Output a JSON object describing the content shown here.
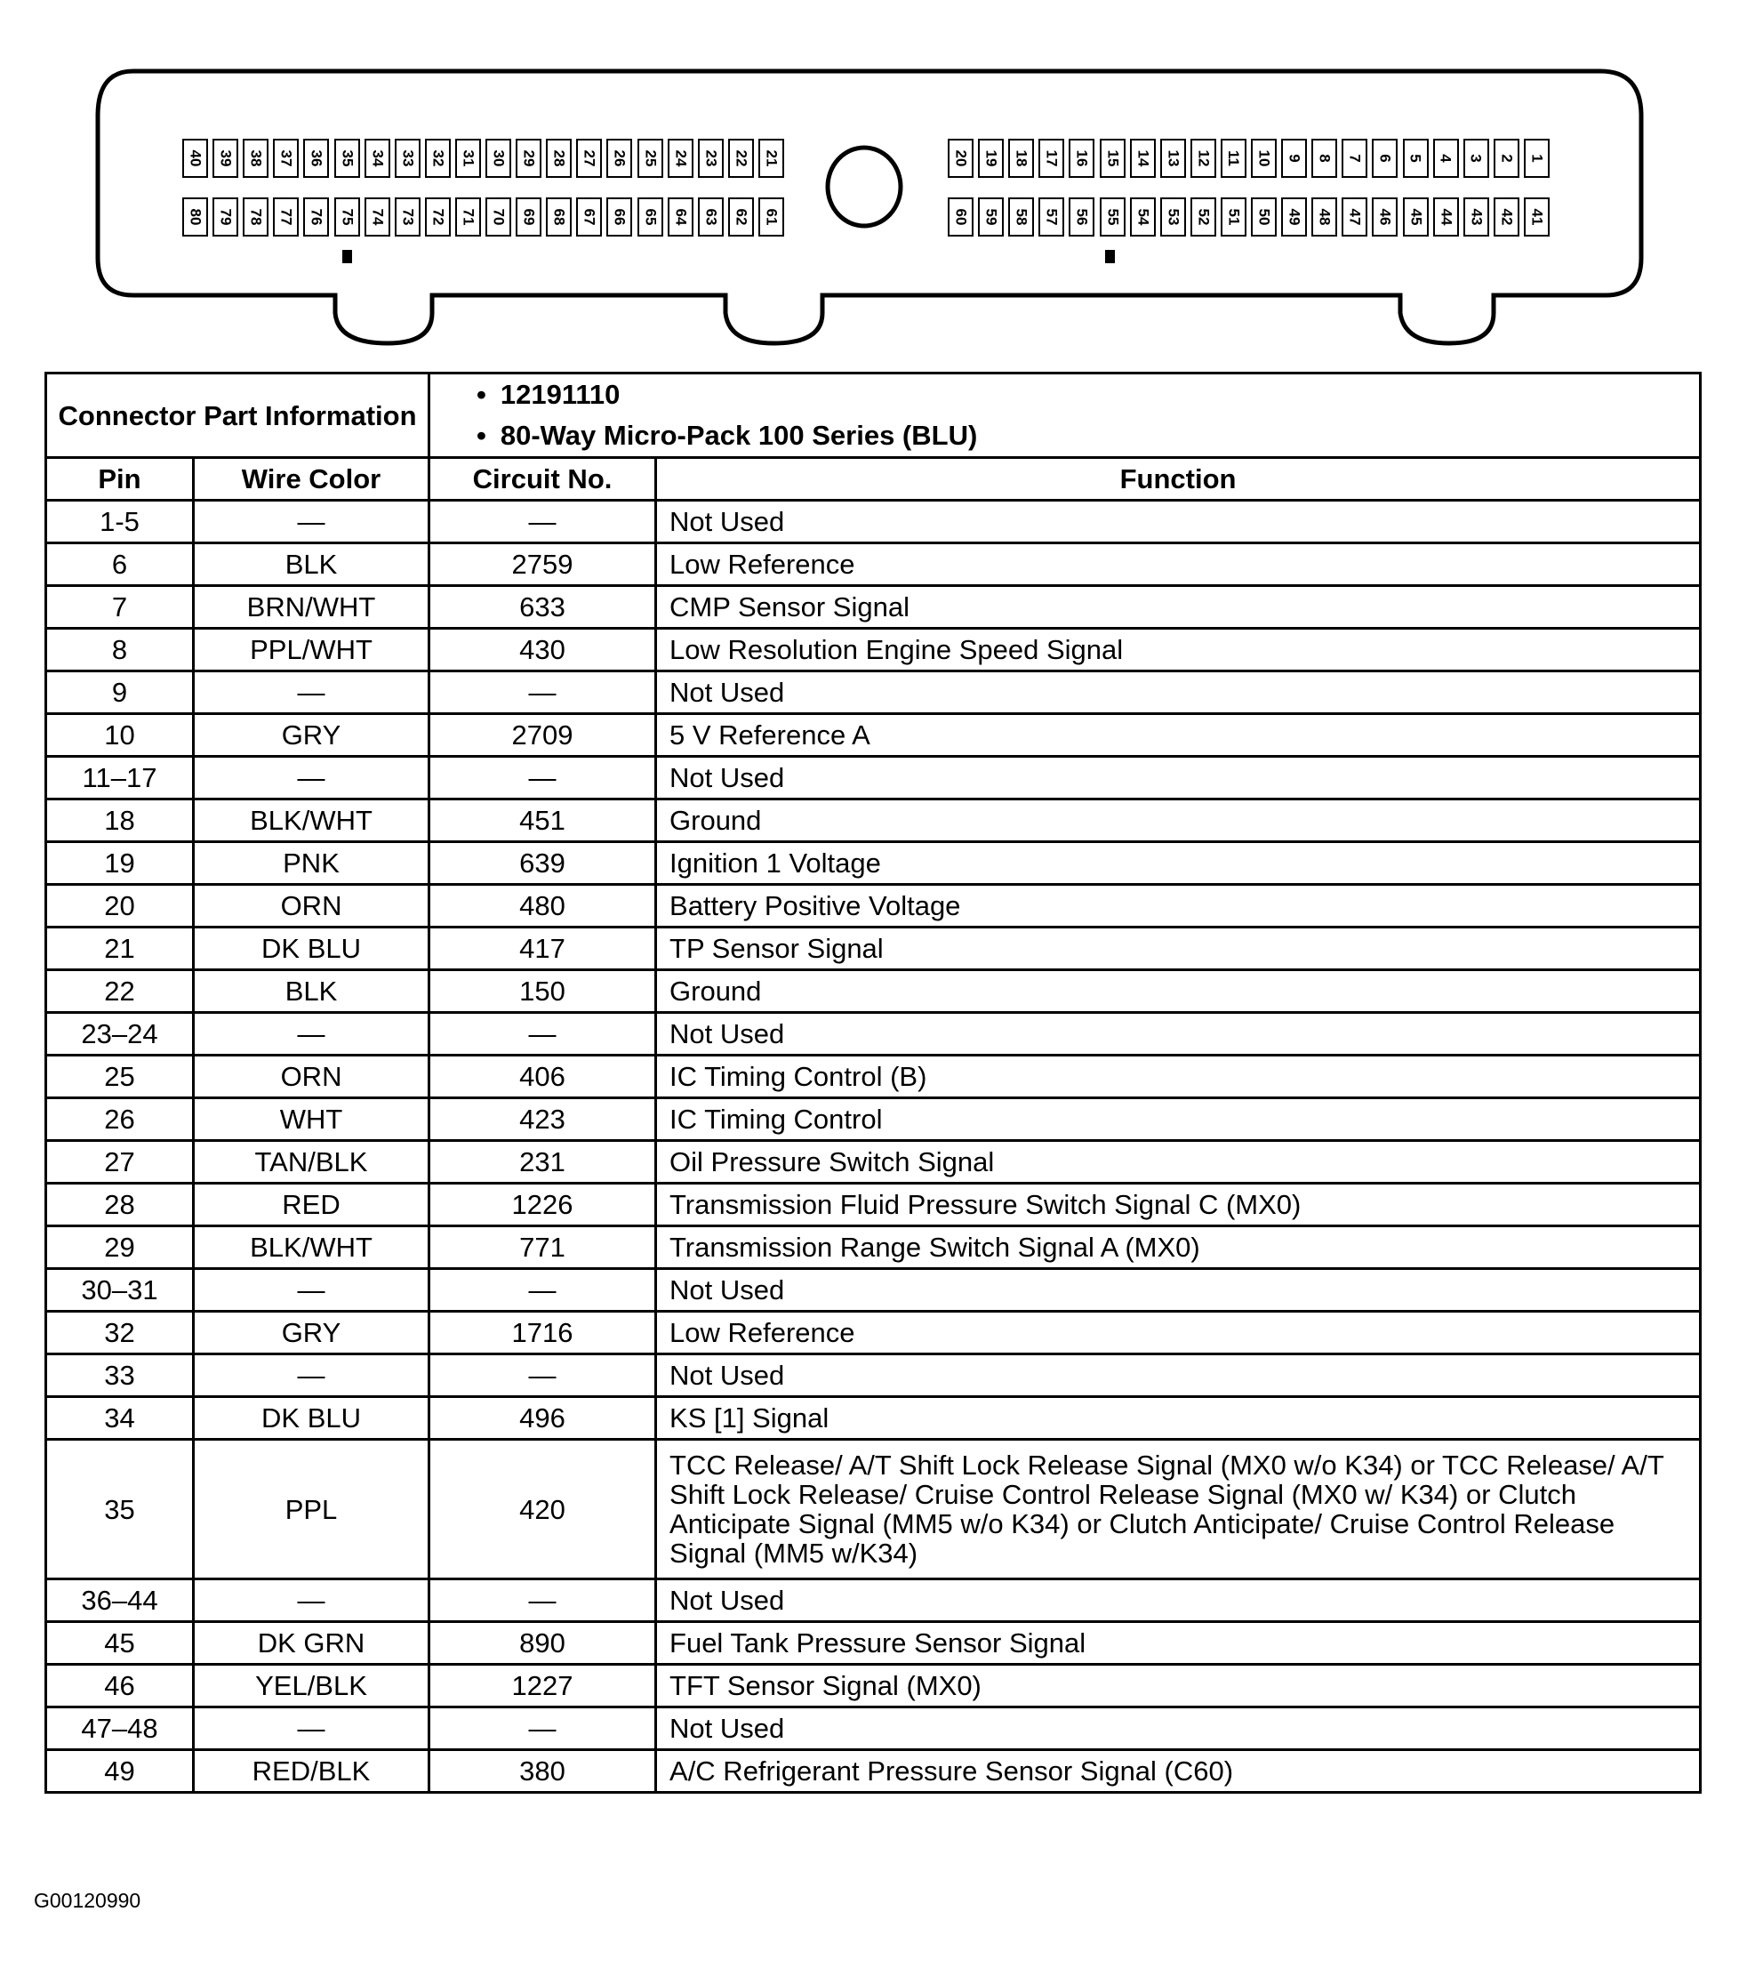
{
  "connector": {
    "top_left_pins": [
      "40",
      "39",
      "38",
      "37",
      "36",
      "35",
      "34",
      "33",
      "32",
      "31",
      "30",
      "29",
      "28",
      "27",
      "26",
      "25",
      "24",
      "23",
      "22",
      "21"
    ],
    "bottom_left_pins": [
      "80",
      "79",
      "78",
      "77",
      "76",
      "75",
      "74",
      "73",
      "72",
      "71",
      "70",
      "69",
      "68",
      "67",
      "66",
      "65",
      "64",
      "63",
      "62",
      "61"
    ],
    "top_right_pins": [
      "20",
      "19",
      "18",
      "17",
      "16",
      "15",
      "14",
      "13",
      "12",
      "11",
      "10",
      "9",
      "8",
      "7",
      "6",
      "5",
      "4",
      "3",
      "2",
      "1"
    ],
    "bottom_right_pins": [
      "60",
      "59",
      "58",
      "57",
      "56",
      "55",
      "54",
      "53",
      "52",
      "51",
      "50",
      "49",
      "48",
      "47",
      "46",
      "45",
      "44",
      "43",
      "42",
      "41"
    ]
  },
  "table": {
    "info_label": "Connector Part Information",
    "info_items": [
      "12191110",
      "80-Way Micro-Pack 100 Series (BLU)"
    ],
    "headers": {
      "pin": "Pin",
      "wire": "Wire Color",
      "circuit": "Circuit No.",
      "function": "Function"
    },
    "rows": [
      {
        "pin": "1-5",
        "wire": "—",
        "circuit": "—",
        "function": "Not Used"
      },
      {
        "pin": "6",
        "wire": "BLK",
        "circuit": "2759",
        "function": "Low Reference"
      },
      {
        "pin": "7",
        "wire": "BRN/WHT",
        "circuit": "633",
        "function": "CMP Sensor Signal"
      },
      {
        "pin": "8",
        "wire": "PPL/WHT",
        "circuit": "430",
        "function": "Low Resolution Engine Speed Signal"
      },
      {
        "pin": "9",
        "wire": "—",
        "circuit": "—",
        "function": "Not Used"
      },
      {
        "pin": "10",
        "wire": "GRY",
        "circuit": "2709",
        "function": "5 V Reference A"
      },
      {
        "pin": "11–17",
        "wire": "—",
        "circuit": "—",
        "function": "Not Used"
      },
      {
        "pin": "18",
        "wire": "BLK/WHT",
        "circuit": "451",
        "function": "Ground"
      },
      {
        "pin": "19",
        "wire": "PNK",
        "circuit": "639",
        "function": "Ignition 1 Voltage"
      },
      {
        "pin": "20",
        "wire": "ORN",
        "circuit": "480",
        "function": "Battery Positive Voltage"
      },
      {
        "pin": "21",
        "wire": "DK BLU",
        "circuit": "417",
        "function": "TP Sensor Signal"
      },
      {
        "pin": "22",
        "wire": "BLK",
        "circuit": "150",
        "function": "Ground"
      },
      {
        "pin": "23–24",
        "wire": "—",
        "circuit": "—",
        "function": "Not Used"
      },
      {
        "pin": "25",
        "wire": "ORN",
        "circuit": "406",
        "function": "IC Timing Control (B)"
      },
      {
        "pin": "26",
        "wire": "WHT",
        "circuit": "423",
        "function": "IC Timing Control"
      },
      {
        "pin": "27",
        "wire": "TAN/BLK",
        "circuit": "231",
        "function": "Oil Pressure Switch Signal"
      },
      {
        "pin": "28",
        "wire": "RED",
        "circuit": "1226",
        "function": "Transmission Fluid Pressure Switch Signal C (MX0)"
      },
      {
        "pin": "29",
        "wire": "BLK/WHT",
        "circuit": "771",
        "function": "Transmission Range Switch Signal A (MX0)"
      },
      {
        "pin": "30–31",
        "wire": "—",
        "circuit": "—",
        "function": "Not Used"
      },
      {
        "pin": "32",
        "wire": "GRY",
        "circuit": "1716",
        "function": "Low Reference"
      },
      {
        "pin": "33",
        "wire": "—",
        "circuit": "—",
        "function": "Not Used"
      },
      {
        "pin": "34",
        "wire": "DK BLU",
        "circuit": "496",
        "function": "KS [1] Signal"
      },
      {
        "pin": "35",
        "wire": "PPL",
        "circuit": "420",
        "function": "TCC Release/ A/T Shift Lock Release Signal (MX0 w/o K34) or TCC Release/ A/T Shift Lock Release/ Cruise Control Release Signal (MX0 w/ K34) or Clutch Anticipate Signal (MM5 w/o K34) or Clutch Anticipate/ Cruise Control Release Signal (MM5 w/K34)"
      },
      {
        "pin": "36–44",
        "wire": "—",
        "circuit": "—",
        "function": "Not Used"
      },
      {
        "pin": "45",
        "wire": "DK GRN",
        "circuit": "890",
        "function": "Fuel Tank Pressure Sensor Signal"
      },
      {
        "pin": "46",
        "wire": "YEL/BLK",
        "circuit": "1227",
        "function": "TFT Sensor Signal (MX0)"
      },
      {
        "pin": "47–48",
        "wire": "—",
        "circuit": "—",
        "function": "Not Used"
      },
      {
        "pin": "49",
        "wire": "RED/BLK",
        "circuit": "380",
        "function": "A/C Refrigerant Pressure Sensor Signal (C60)"
      }
    ]
  },
  "footer": {
    "figure_id": "G00120990"
  }
}
